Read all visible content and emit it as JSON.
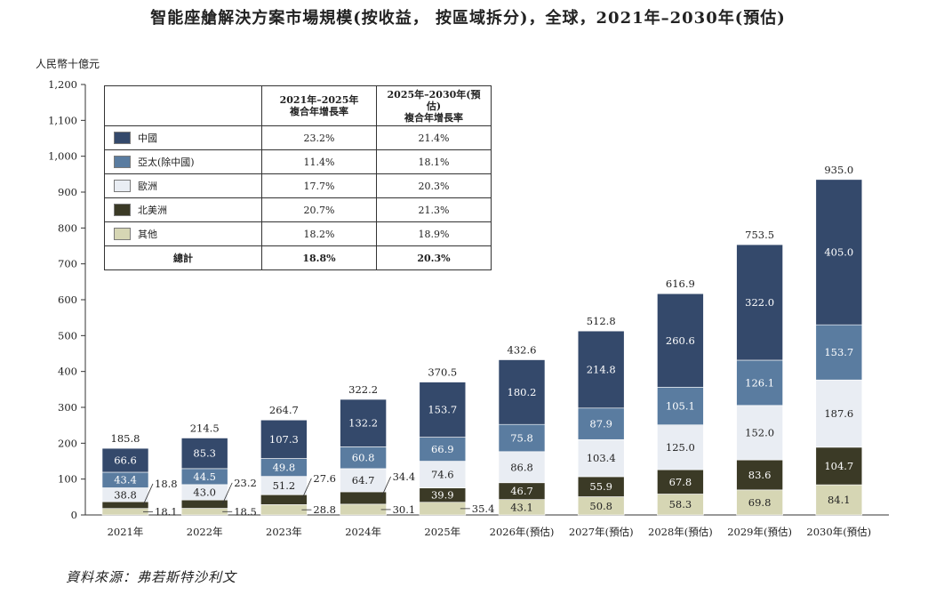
{
  "title": "智能座艙解決方案市場規模(按收益， 按區域拆分)，全球，2021年–2030年(預估)",
  "source": "資料來源：弗若斯特沙利文",
  "chart_data": {
    "type": "bar",
    "stacked": true,
    "ylabel": "人民幣十億元",
    "ylim": [
      0,
      1200
    ],
    "yticks": [
      0,
      100,
      200,
      300,
      400,
      500,
      600,
      700,
      800,
      900,
      "1,000",
      "1,100",
      "1,200"
    ],
    "categories": [
      "2021年",
      "2022年",
      "2023年",
      "2024年",
      "2025年",
      "2026年(預估)",
      "2027年(預估)",
      "2028年(預估)",
      "2029年(預估)",
      "2030年(預估)"
    ],
    "series": [
      {
        "name": "其他",
        "color": "#d6d6b4",
        "values": [
          18.1,
          18.5,
          28.8,
          30.1,
          35.4,
          43.1,
          50.8,
          58.3,
          69.8,
          84.1
        ]
      },
      {
        "name": "北美洲",
        "color": "#3b3a26",
        "values": [
          18.8,
          23.2,
          27.6,
          34.4,
          39.9,
          46.7,
          55.9,
          67.8,
          83.6,
          104.7
        ]
      },
      {
        "name": "歐洲",
        "color": "#e9edf3",
        "values": [
          38.8,
          43.0,
          51.2,
          64.7,
          74.6,
          86.8,
          103.4,
          125.0,
          152.0,
          187.6
        ]
      },
      {
        "name": "亞太(除中國)",
        "color": "#5a7ca0",
        "values": [
          43.4,
          44.5,
          49.8,
          60.8,
          66.9,
          75.8,
          87.9,
          105.1,
          126.1,
          153.7
        ]
      },
      {
        "name": "中國",
        "color": "#34496b",
        "values": [
          66.6,
          85.3,
          107.3,
          132.2,
          153.7,
          180.2,
          214.8,
          260.6,
          322.0,
          405.0
        ]
      }
    ],
    "totals": [
      "185.8",
      "214.5",
      "264.7",
      "322.2",
      "370.5",
      "432.6",
      "512.8",
      "616.9",
      "753.5",
      "935.0"
    ]
  },
  "table": {
    "header_1": "2021年–2025年\n複合年增長率",
    "header_2": "2025年–2030年(預估)\n複合年增長率",
    "rows": [
      {
        "name": "中國",
        "color": "#34496b",
        "cagr_1": "23.2%",
        "cagr_2": "21.4%"
      },
      {
        "name": "亞太(除中國)",
        "color": "#5a7ca0",
        "cagr_1": "11.4%",
        "cagr_2": "18.1%"
      },
      {
        "name": "歐洲",
        "color": "#e9edf3",
        "cagr_1": "17.7%",
        "cagr_2": "20.3%"
      },
      {
        "name": "北美洲",
        "color": "#3b3a26",
        "cagr_1": "20.7%",
        "cagr_2": "21.3%"
      },
      {
        "name": "其他",
        "color": "#d6d6b4",
        "cagr_1": "18.2%",
        "cagr_2": "18.9%"
      }
    ],
    "total": {
      "name": "總計",
      "cagr_1": "18.8%",
      "cagr_2": "20.3%"
    }
  }
}
